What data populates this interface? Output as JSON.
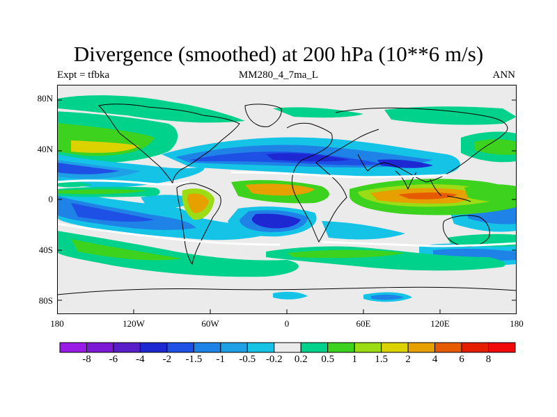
{
  "title": "Divergence (smoothed) at 200 hPa (10**6 m/s)",
  "subtitle_left": "Expt = tfbka",
  "subtitle_center": "MM280_4_7ma_L",
  "subtitle_right": "ANN",
  "lat_labels": [
    "80N",
    "40N",
    "0",
    "40S",
    "80S"
  ],
  "lon_labels": [
    "180",
    "120W",
    "60W",
    "0",
    "60E",
    "120E",
    "180"
  ],
  "colorbar": {
    "labels": [
      "-8",
      "-6",
      "-4",
      "-2",
      "-1.5",
      "-1",
      "-0.5",
      "-0.2",
      "0.2",
      "0.5",
      "1",
      "1.5",
      "2",
      "4",
      "6",
      "8"
    ],
    "colors": [
      "#9a1ae6",
      "#7d1ad6",
      "#5a1ec8",
      "#1e28d2",
      "#1e50e6",
      "#1e82e6",
      "#1ea0e6",
      "#14c3e6",
      "#ebebeb",
      "#00d28c",
      "#3cd21e",
      "#9bdc14",
      "#dcd200",
      "#e6a000",
      "#e65a00",
      "#e61e00",
      "#f00a0a"
    ]
  },
  "colors": {
    "background": "#ebebeb",
    "coast": "#000000"
  }
}
